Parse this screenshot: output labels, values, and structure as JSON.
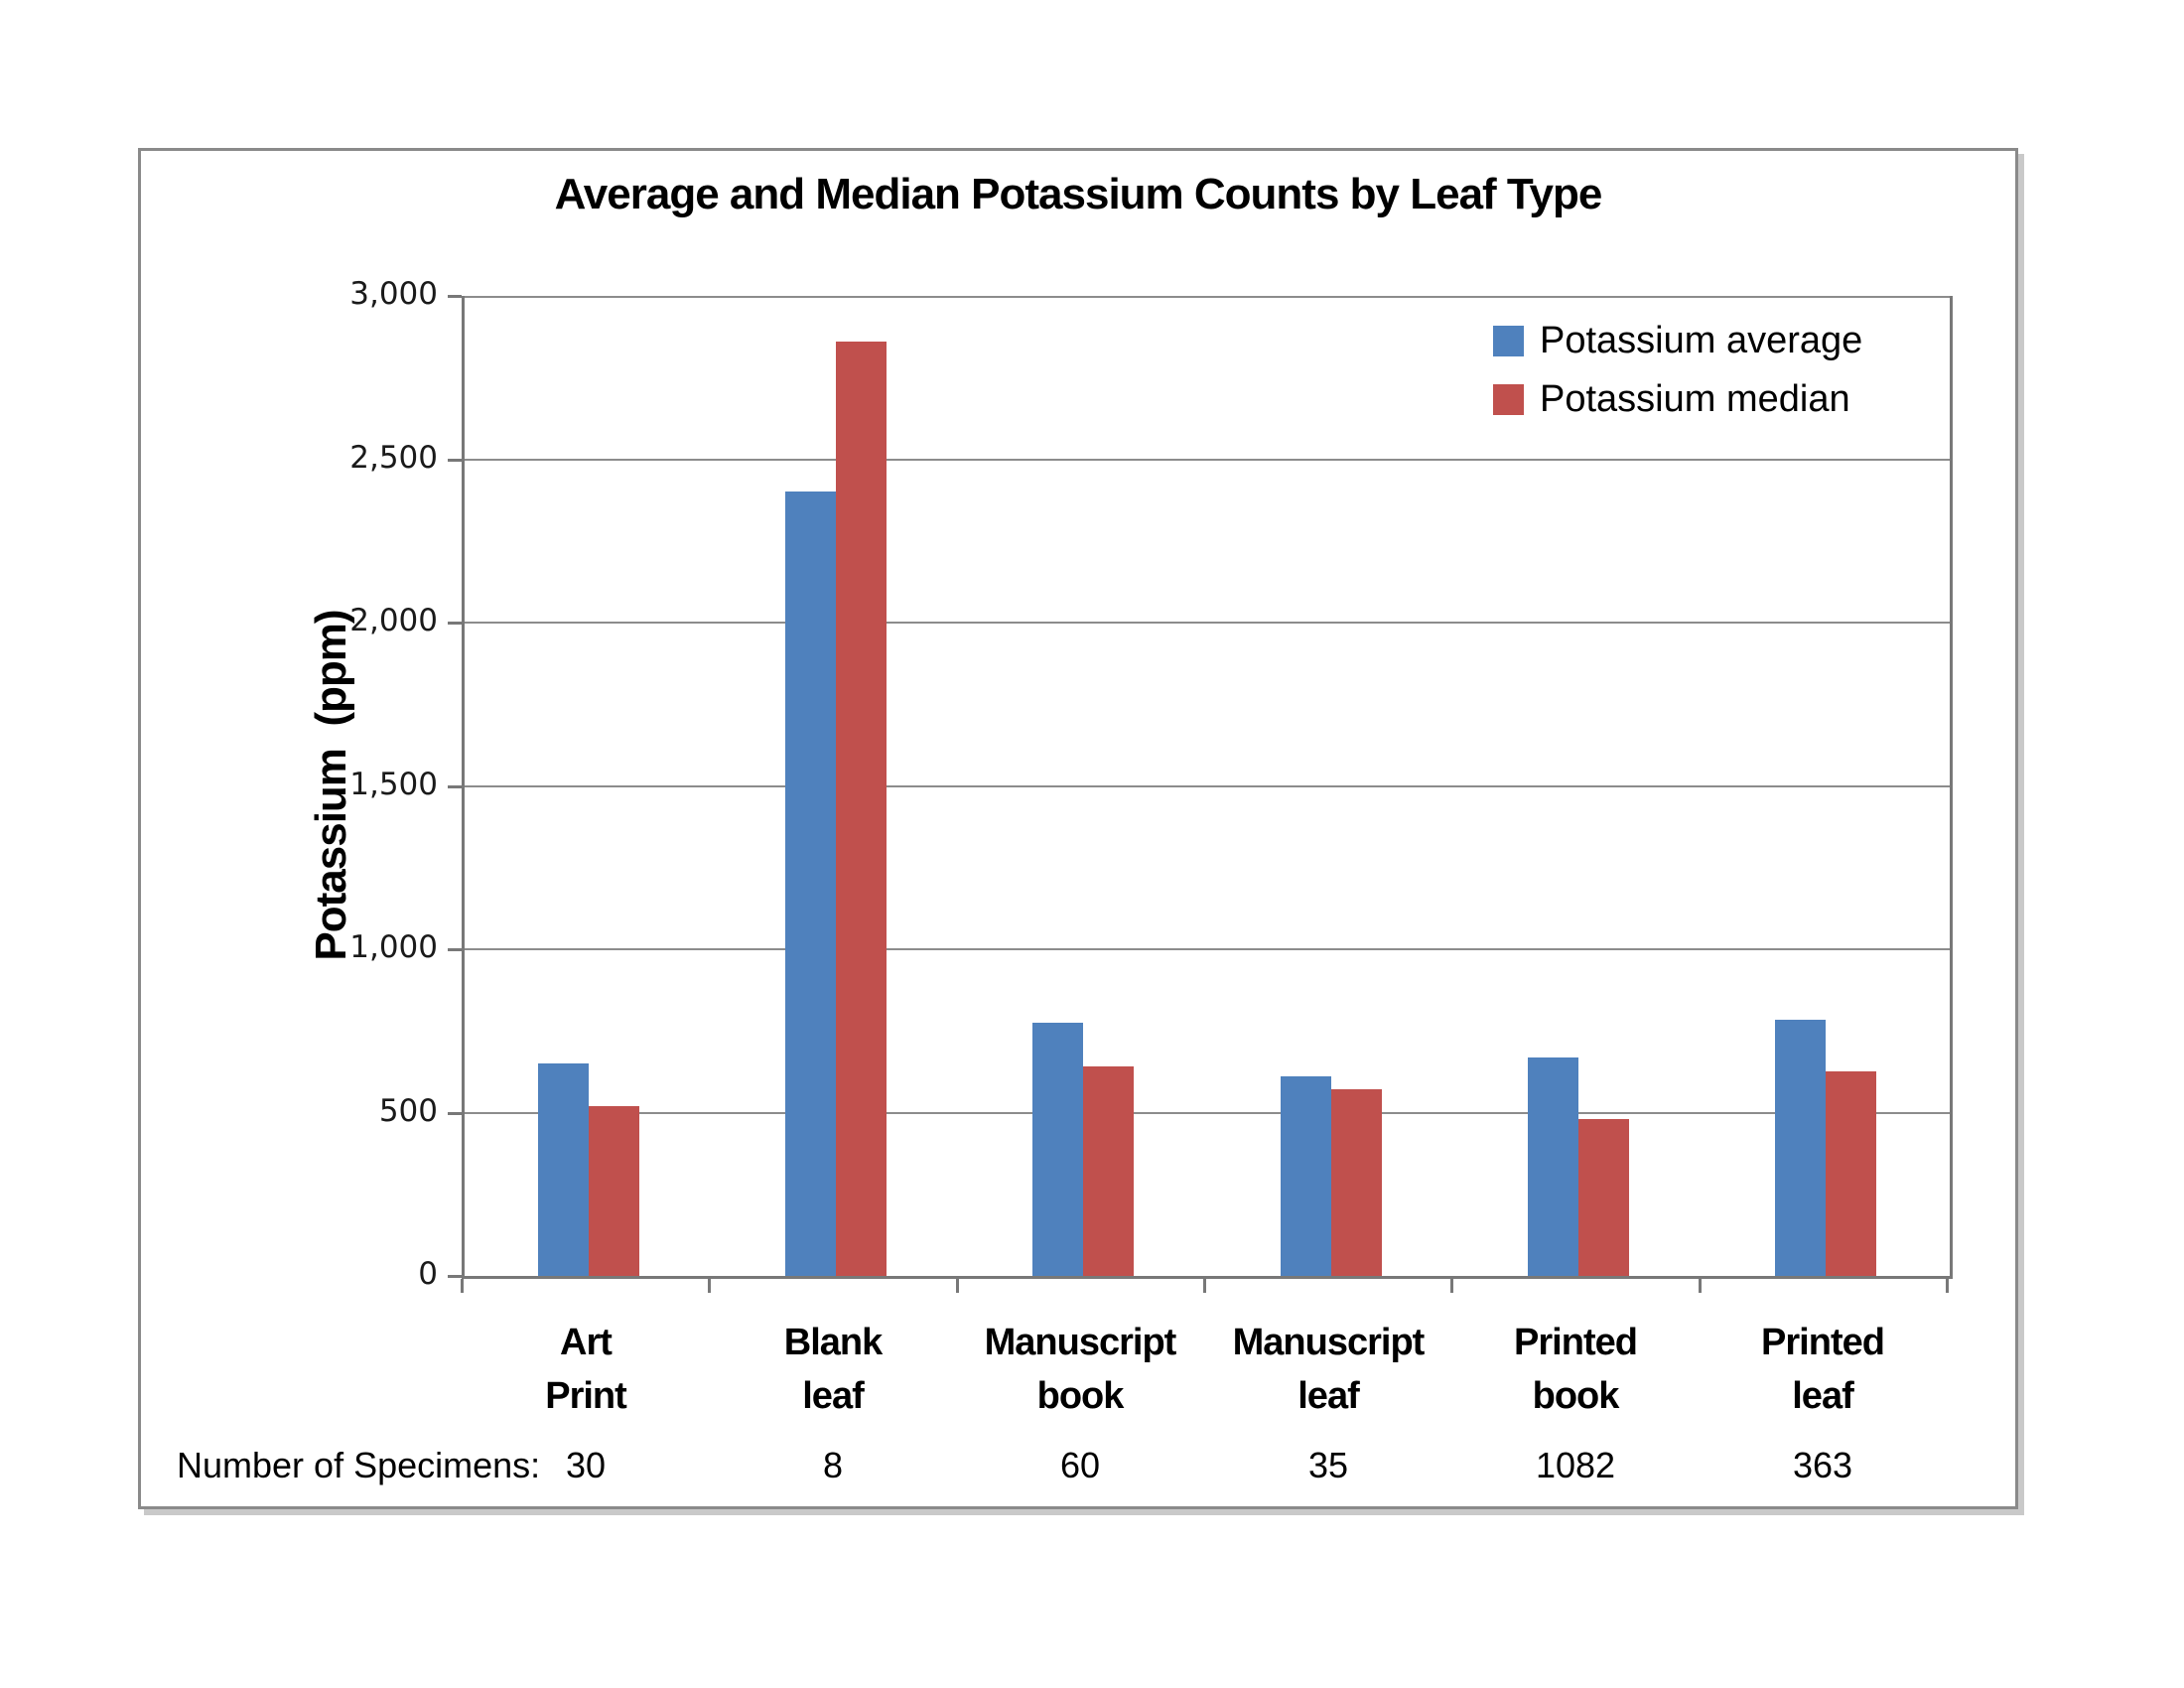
{
  "chart": {
    "title": "Average and Median Potassium Counts by Leaf Type",
    "y_axis_title": "Potassium  (ppm)",
    "specimens_label": "Number of Specimens:"
  },
  "chart_data": {
    "type": "bar",
    "title": "Average and Median Potassium Counts by Leaf Type",
    "xlabel": "",
    "ylabel": "Potassium (ppm)",
    "ylim": [
      0,
      3000
    ],
    "ytick_step": 500,
    "ytick_labels": [
      "3,000",
      "2,500",
      "2,000",
      "1,500",
      "1,000",
      "500",
      "0"
    ],
    "grid": true,
    "legend_position": "top-right",
    "categories": [
      [
        "Art",
        "Print"
      ],
      [
        "Blank",
        "leaf"
      ],
      [
        "Manuscript",
        "book"
      ],
      [
        "Manuscript",
        "leaf"
      ],
      [
        "Printed",
        "book"
      ],
      [
        "Printed",
        "leaf"
      ]
    ],
    "series": [
      {
        "name": "Potassium average",
        "color": "#4F81BD",
        "values": [
          650,
          2400,
          775,
          610,
          670,
          785
        ]
      },
      {
        "name": "Potassium median",
        "color": "#C0504D",
        "values": [
          520,
          2860,
          640,
          570,
          480,
          625
        ]
      }
    ],
    "specimens": [
      30,
      8,
      60,
      35,
      1082,
      363
    ],
    "axis_color": "#787878",
    "gridline_color": "#8c8c8c"
  }
}
